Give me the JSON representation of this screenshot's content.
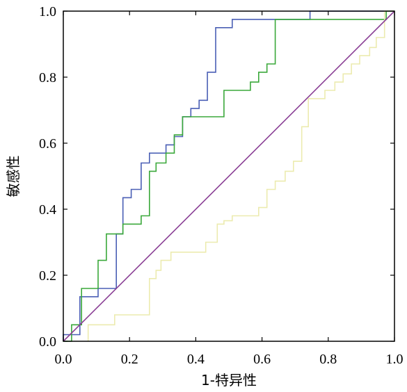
{
  "chart_data": {
    "type": "line",
    "title": "",
    "xlabel": "1-特异性",
    "ylabel": "敏感性",
    "xlim": [
      0,
      1
    ],
    "ylim": [
      0,
      1
    ],
    "grid": false,
    "x_ticks": [
      "0.0",
      "0.2",
      "0.4",
      "0.6",
      "0.8",
      "1.0"
    ],
    "y_ticks": [
      "0.0",
      "0.2",
      "0.4",
      "0.6",
      "0.8",
      "1.0"
    ],
    "series": [
      {
        "color": "#4a5fb5",
        "step": true,
        "x": [
          0.0,
          0.0,
          0.05,
          0.05,
          0.105,
          0.105,
          0.16,
          0.16,
          0.18,
          0.18,
          0.205,
          0.205,
          0.235,
          0.235,
          0.26,
          0.26,
          0.31,
          0.31,
          0.335,
          0.335,
          0.36,
          0.36,
          0.385,
          0.385,
          0.41,
          0.41,
          0.435,
          0.435,
          0.46,
          0.46,
          0.51,
          0.51,
          0.745,
          0.745,
          1.0
        ],
        "y": [
          0.0,
          0.02,
          0.02,
          0.135,
          0.135,
          0.16,
          0.16,
          0.325,
          0.325,
          0.435,
          0.435,
          0.46,
          0.46,
          0.54,
          0.54,
          0.57,
          0.57,
          0.595,
          0.595,
          0.62,
          0.62,
          0.68,
          0.68,
          0.705,
          0.705,
          0.73,
          0.73,
          0.815,
          0.815,
          0.95,
          0.95,
          0.975,
          0.975,
          1.0,
          1.0
        ]
      },
      {
        "color": "#3aa83a",
        "step": true,
        "x": [
          0.0,
          0.025,
          0.025,
          0.055,
          0.055,
          0.105,
          0.105,
          0.13,
          0.13,
          0.18,
          0.18,
          0.235,
          0.235,
          0.26,
          0.26,
          0.28,
          0.28,
          0.31,
          0.31,
          0.335,
          0.335,
          0.36,
          0.36,
          0.485,
          0.485,
          0.565,
          0.565,
          0.59,
          0.59,
          0.615,
          0.615,
          0.64,
          0.64,
          0.975,
          0.975,
          1.0
        ],
        "y": [
          0.0,
          0.0,
          0.05,
          0.05,
          0.16,
          0.16,
          0.245,
          0.245,
          0.325,
          0.325,
          0.355,
          0.355,
          0.38,
          0.38,
          0.515,
          0.515,
          0.54,
          0.54,
          0.57,
          0.57,
          0.625,
          0.625,
          0.68,
          0.68,
          0.76,
          0.76,
          0.785,
          0.785,
          0.815,
          0.815,
          0.84,
          0.84,
          0.975,
          0.975,
          1.0,
          1.0
        ]
      },
      {
        "color": "#ecebaf",
        "step": true,
        "x": [
          0.075,
          0.075,
          0.155,
          0.155,
          0.26,
          0.26,
          0.28,
          0.28,
          0.295,
          0.295,
          0.325,
          0.325,
          0.43,
          0.43,
          0.465,
          0.465,
          0.485,
          0.485,
          0.51,
          0.51,
          0.59,
          0.59,
          0.615,
          0.615,
          0.64,
          0.64,
          0.67,
          0.67,
          0.695,
          0.695,
          0.72,
          0.72,
          0.74,
          0.74,
          0.79,
          0.79,
          0.82,
          0.82,
          0.845,
          0.845,
          0.87,
          0.87,
          0.895,
          0.895,
          0.925,
          0.925,
          0.945,
          0.945,
          0.97,
          0.97,
          1.0
        ],
        "y": [
          0.0,
          0.05,
          0.05,
          0.08,
          0.08,
          0.19,
          0.19,
          0.215,
          0.215,
          0.245,
          0.245,
          0.27,
          0.27,
          0.3,
          0.3,
          0.355,
          0.355,
          0.365,
          0.365,
          0.38,
          0.38,
          0.405,
          0.405,
          0.46,
          0.46,
          0.485,
          0.485,
          0.515,
          0.515,
          0.545,
          0.545,
          0.65,
          0.65,
          0.735,
          0.735,
          0.76,
          0.76,
          0.785,
          0.785,
          0.81,
          0.81,
          0.84,
          0.84,
          0.865,
          0.865,
          0.89,
          0.89,
          0.92,
          0.92,
          1.0,
          1.0
        ]
      },
      {
        "color": "#8a3f95",
        "step": false,
        "x": [
          0.0,
          1.0
        ],
        "y": [
          0.0,
          1.0
        ]
      }
    ]
  }
}
